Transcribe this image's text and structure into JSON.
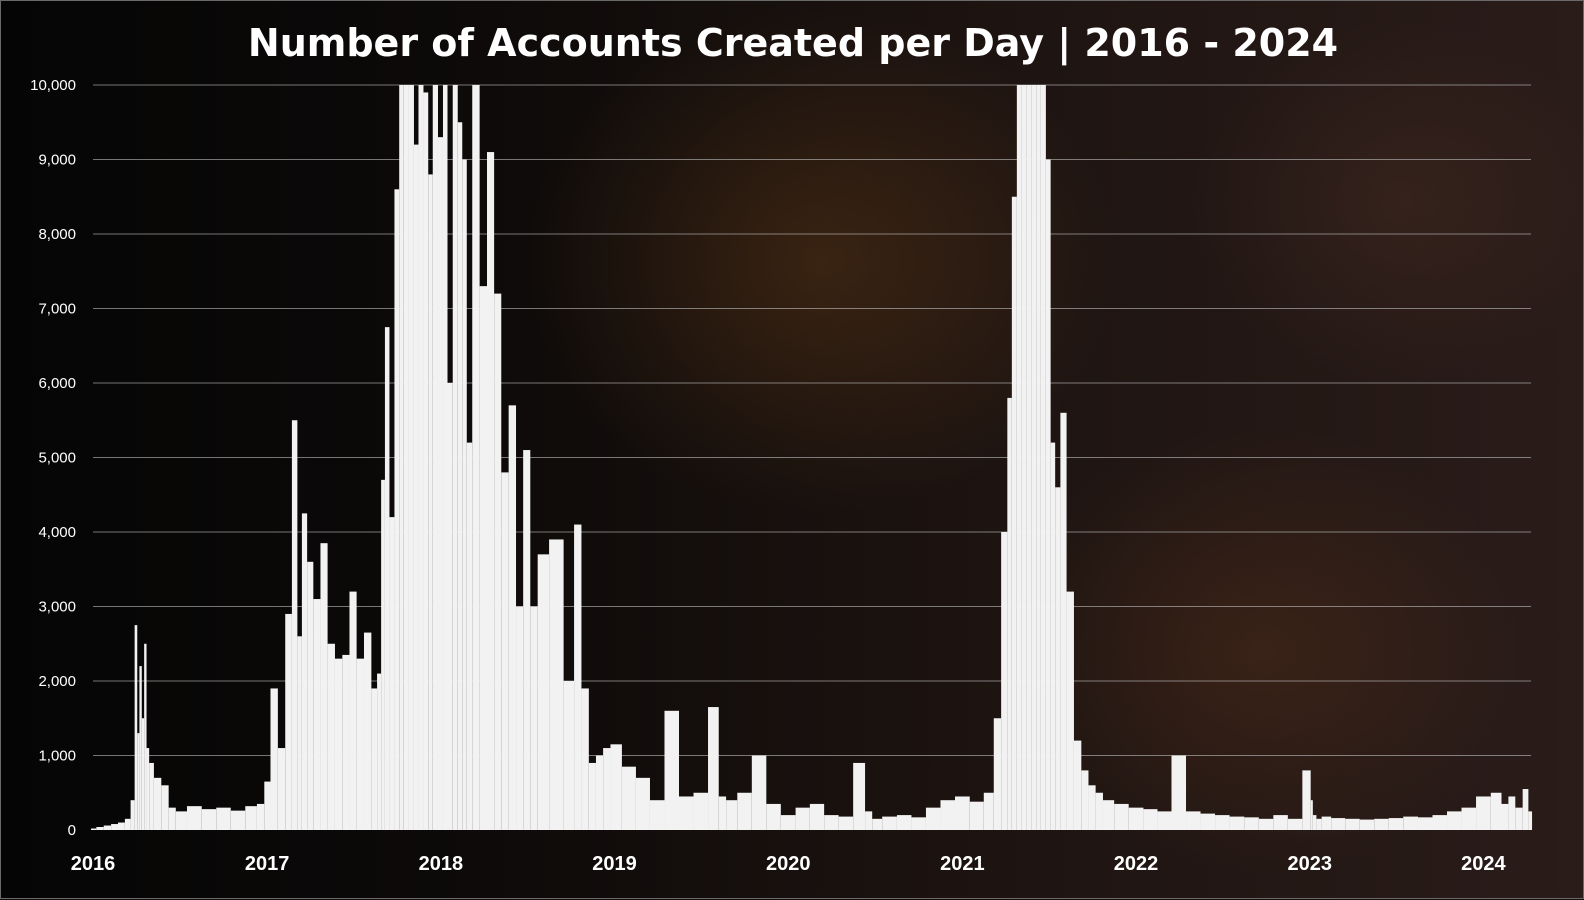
{
  "chart_data": {
    "type": "bar",
    "title": "Number of Accounts Created per Day | 2016 - 2024",
    "xlabel": "",
    "ylabel": "",
    "ylim": [
      0,
      10000
    ],
    "xlim": [
      "2016-01-01",
      "2024-04-10"
    ],
    "grid": true,
    "bar_color": "#f2f2f2",
    "yticks": [
      {
        "value": 0,
        "label": "0"
      },
      {
        "value": 1000,
        "label": "1,000"
      },
      {
        "value": 2000,
        "label": "2,000"
      },
      {
        "value": 3000,
        "label": "3,000"
      },
      {
        "value": 4000,
        "label": "4,000"
      },
      {
        "value": 5000,
        "label": "5,000"
      },
      {
        "value": 6000,
        "label": "6,000"
      },
      {
        "value": 7000,
        "label": "7,000"
      },
      {
        "value": 8000,
        "label": "8,000"
      },
      {
        "value": 9000,
        "label": "9,000"
      },
      {
        "value": 10000,
        "label": "10,000"
      }
    ],
    "xticks": [
      {
        "value": "2016-01-01",
        "label": "2016"
      },
      {
        "value": "2017-01-01",
        "label": "2017"
      },
      {
        "value": "2018-01-01",
        "label": "2018"
      },
      {
        "value": "2019-01-01",
        "label": "2019"
      },
      {
        "value": "2020-01-01",
        "label": "2020"
      },
      {
        "value": "2021-01-01",
        "label": "2021"
      },
      {
        "value": "2022-01-01",
        "label": "2022"
      },
      {
        "value": "2023-01-01",
        "label": "2023"
      },
      {
        "value": "2024-01-01",
        "label": "2024"
      }
    ],
    "x": [
      "2016-01-01",
      "2016-01-15",
      "2016-02-01",
      "2016-02-15",
      "2016-03-01",
      "2016-03-15",
      "2016-03-25",
      "2016-04-01",
      "2016-04-05",
      "2016-04-10",
      "2016-04-15",
      "2016-04-20",
      "2016-04-25",
      "2016-05-01",
      "2016-05-15",
      "2016-06-01",
      "2016-06-15",
      "2016-07-01",
      "2016-08-01",
      "2016-09-01",
      "2016-10-01",
      "2016-11-01",
      "2016-12-01",
      "2016-12-20",
      "2017-01-01",
      "2017-01-15",
      "2017-02-01",
      "2017-02-15",
      "2017-03-01",
      "2017-03-10",
      "2017-03-20",
      "2017-04-01",
      "2017-04-15",
      "2017-05-01",
      "2017-05-15",
      "2017-06-01",
      "2017-06-15",
      "2017-07-01",
      "2017-07-15",
      "2017-08-01",
      "2017-08-15",
      "2017-08-25",
      "2017-09-01",
      "2017-09-10",
      "2017-09-20",
      "2017-10-01",
      "2017-10-10",
      "2017-10-20",
      "2017-11-01",
      "2017-11-10",
      "2017-11-20",
      "2017-12-01",
      "2017-12-10",
      "2017-12-20",
      "2018-01-01",
      "2018-01-10",
      "2018-01-20",
      "2018-02-01",
      "2018-02-10",
      "2018-02-20",
      "2018-03-01",
      "2018-03-15",
      "2018-04-01",
      "2018-04-15",
      "2018-05-01",
      "2018-05-15",
      "2018-06-01",
      "2018-06-15",
      "2018-07-01",
      "2018-07-15",
      "2018-08-01",
      "2018-09-01",
      "2018-10-01",
      "2018-10-15",
      "2018-11-01",
      "2018-11-15",
      "2018-12-01",
      "2018-12-15",
      "2019-01-01",
      "2019-02-01",
      "2019-03-01",
      "2019-04-01",
      "2019-05-01",
      "2019-06-01",
      "2019-07-01",
      "2019-08-01",
      "2019-08-15",
      "2019-09-01",
      "2019-10-01",
      "2019-11-01",
      "2019-12-01",
      "2020-01-01",
      "2020-02-01",
      "2020-03-01",
      "2020-04-01",
      "2020-05-01",
      "2020-06-01",
      "2020-06-20",
      "2020-07-01",
      "2020-08-01",
      "2020-09-01",
      "2020-10-01",
      "2020-11-01",
      "2020-12-01",
      "2021-01-01",
      "2021-02-01",
      "2021-03-01",
      "2021-03-15",
      "2021-04-01",
      "2021-04-10",
      "2021-04-20",
      "2021-05-01",
      "2021-05-10",
      "2021-05-20",
      "2021-06-01",
      "2021-06-10",
      "2021-06-20",
      "2021-07-01",
      "2021-07-10",
      "2021-07-20",
      "2021-08-01",
      "2021-08-15",
      "2021-09-01",
      "2021-09-15",
      "2021-10-01",
      "2021-10-15",
      "2021-11-01",
      "2021-12-01",
      "2022-01-01",
      "2022-02-01",
      "2022-03-01",
      "2022-04-01",
      "2022-05-01",
      "2022-06-01",
      "2022-07-01",
      "2022-08-01",
      "2022-09-01",
      "2022-10-01",
      "2022-11-01",
      "2022-12-01",
      "2023-01-01",
      "2023-01-05",
      "2023-01-10",
      "2023-01-20",
      "2023-02-01",
      "2023-03-01",
      "2023-04-01",
      "2023-05-01",
      "2023-06-01",
      "2023-07-01",
      "2023-08-01",
      "2023-09-01",
      "2023-10-01",
      "2023-11-01",
      "2023-12-01",
      "2024-01-01",
      "2024-02-01",
      "2024-02-15",
      "2024-03-01",
      "2024-03-15",
      "2024-04-01",
      "2024-04-08"
    ],
    "values": [
      20,
      40,
      60,
      80,
      100,
      150,
      400,
      2750,
      1300,
      2200,
      1500,
      2500,
      1100,
      900,
      700,
      600,
      300,
      250,
      320,
      280,
      300,
      260,
      320,
      350,
      650,
      1900,
      1100,
      2900,
      5500,
      2600,
      4250,
      3600,
      3100,
      3850,
      2500,
      2300,
      2350,
      3200,
      2300,
      2650,
      1900,
      2100,
      4700,
      6750,
      4200,
      8600,
      10000,
      10000,
      10000,
      9200,
      10000,
      9900,
      8800,
      10000,
      9300,
      10000,
      6000,
      10000,
      9500,
      9000,
      5200,
      10000,
      7300,
      9100,
      7200,
      4800,
      5700,
      3000,
      5100,
      3000,
      3700,
      3900,
      2000,
      4100,
      1900,
      900,
      1000,
      1100,
      1150,
      850,
      700,
      400,
      1600,
      450,
      500,
      1650,
      450,
      400,
      500,
      1000,
      350,
      200,
      300,
      350,
      200,
      180,
      900,
      250,
      150,
      180,
      200,
      170,
      300,
      400,
      450,
      380,
      500,
      1500,
      4000,
      5800,
      8500,
      10000,
      10000,
      10000,
      10000,
      10000,
      10000,
      9000,
      5200,
      4600,
      5600,
      3200,
      1200,
      800,
      600,
      500,
      400,
      350,
      300,
      280,
      250,
      1000,
      250,
      220,
      200,
      180,
      170,
      150,
      200,
      150,
      800,
      400,
      200,
      150,
      180,
      160,
      150,
      140,
      150,
      160,
      180,
      170,
      200,
      250,
      300,
      450,
      500,
      350,
      450,
      300,
      550,
      250
    ]
  }
}
